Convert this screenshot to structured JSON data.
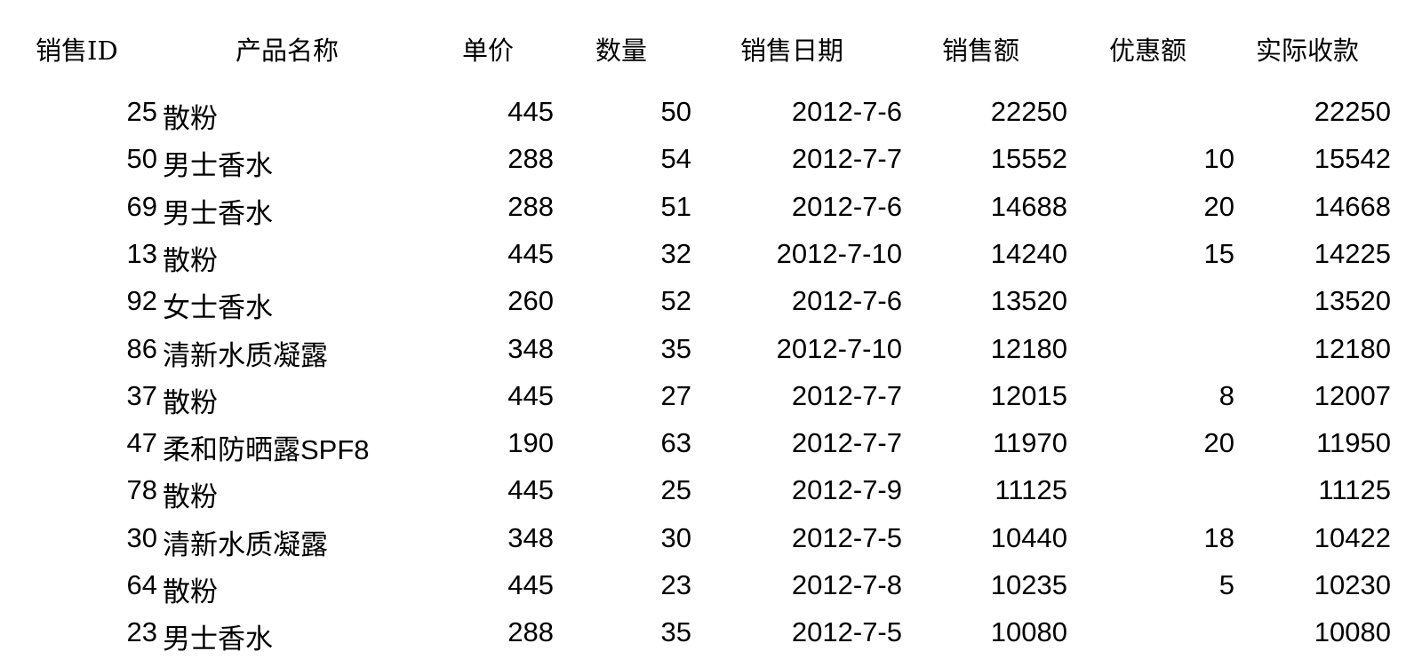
{
  "headers": [
    "销售ID",
    "产品名称",
    "单价",
    "数量",
    "销售日期",
    "销售额",
    "优惠额",
    "实际收款"
  ],
  "rows": [
    {
      "id": "25",
      "name": "散粉",
      "price": "445",
      "qty": "50",
      "date": "2012-7-6",
      "sales": "22250",
      "discount": "",
      "actual": "22250"
    },
    {
      "id": "50",
      "name": "男士香水",
      "price": "288",
      "qty": "54",
      "date": "2012-7-7",
      "sales": "15552",
      "discount": "10",
      "actual": "15542"
    },
    {
      "id": "69",
      "name": "男士香水",
      "price": "288",
      "qty": "51",
      "date": "2012-7-6",
      "sales": "14688",
      "discount": "20",
      "actual": "14668"
    },
    {
      "id": "13",
      "name": "散粉",
      "price": "445",
      "qty": "32",
      "date": "2012-7-10",
      "sales": "14240",
      "discount": "15",
      "actual": "14225"
    },
    {
      "id": "92",
      "name": "女士香水",
      "price": "260",
      "qty": "52",
      "date": "2012-7-6",
      "sales": "13520",
      "discount": "",
      "actual": "13520"
    },
    {
      "id": "86",
      "name": "清新水质凝露",
      "price": "348",
      "qty": "35",
      "date": "2012-7-10",
      "sales": "12180",
      "discount": "",
      "actual": "12180"
    },
    {
      "id": "37",
      "name": "散粉",
      "price": "445",
      "qty": "27",
      "date": "2012-7-7",
      "sales": "12015",
      "discount": "8",
      "actual": "12007"
    },
    {
      "id": "47",
      "name": "柔和防晒露SPF8",
      "price": "190",
      "qty": "63",
      "date": "2012-7-7",
      "sales": "11970",
      "discount": "20",
      "actual": "11950"
    },
    {
      "id": "78",
      "name": "散粉",
      "price": "445",
      "qty": "25",
      "date": "2012-7-9",
      "sales": "11125",
      "discount": "",
      "actual": "11125"
    },
    {
      "id": "30",
      "name": "清新水质凝露",
      "price": "348",
      "qty": "30",
      "date": "2012-7-5",
      "sales": "10440",
      "discount": "18",
      "actual": "10422"
    },
    {
      "id": "64",
      "name": "散粉",
      "price": "445",
      "qty": "23",
      "date": "2012-7-8",
      "sales": "10235",
      "discount": "5",
      "actual": "10230"
    },
    {
      "id": "23",
      "name": "男士香水",
      "price": "288",
      "qty": "35",
      "date": "2012-7-5",
      "sales": "10080",
      "discount": "",
      "actual": "10080"
    }
  ]
}
